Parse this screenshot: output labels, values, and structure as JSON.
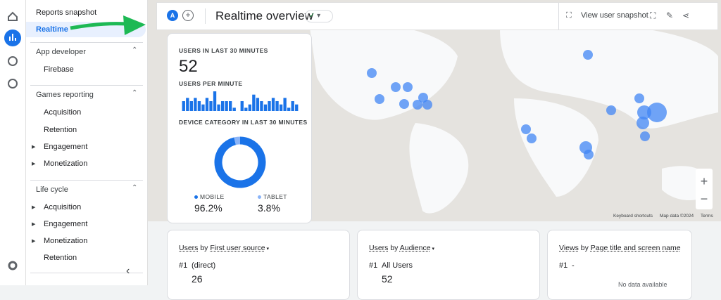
{
  "sidebar": {
    "items": [
      "Reports snapshot",
      "Realtime"
    ],
    "sections": [
      {
        "title": "App developer",
        "items": [
          "Firebase"
        ]
      },
      {
        "title": "Games reporting",
        "items": [
          "Acquisition",
          "Retention",
          "Engagement",
          "Monetization"
        ]
      },
      {
        "title": "Life cycle",
        "items": [
          "Acquisition",
          "Engagement",
          "Monetization",
          "Retention"
        ]
      }
    ]
  },
  "header": {
    "avatar": "A",
    "title": "Realtime overview",
    "snapshot_button": "View user snapshot"
  },
  "realtime_card": {
    "users_label": "USERS IN LAST 30 MINUTES",
    "users_value": "52",
    "per_minute_label": "USERS PER MINUTE",
    "per_minute_values": [
      3,
      4,
      3,
      4,
      3,
      2,
      4,
      3,
      6,
      2,
      3,
      3,
      3,
      1,
      0,
      3,
      1,
      2,
      5,
      4,
      3,
      2,
      3,
      4,
      3,
      2,
      4,
      1,
      3,
      2
    ],
    "device_label": "DEVICE CATEGORY IN LAST 30 MINUTES",
    "devices": [
      {
        "name": "MOBILE",
        "value": 96.2,
        "label": "96.2%",
        "color": "#1a73e8"
      },
      {
        "name": "TABLET",
        "value": 3.8,
        "label": "3.8%",
        "color": "#8ab4f8"
      }
    ]
  },
  "map_footer": [
    "Keyboard shortcuts",
    "Map data ©2024",
    "Terms"
  ],
  "cards": [
    {
      "title_parts": [
        "Users",
        " by ",
        "First user source"
      ],
      "rank": "#1",
      "top_item": "(direct)",
      "top_value": "26"
    },
    {
      "title_parts": [
        "Users",
        " by ",
        "Audience"
      ],
      "rank": "#1",
      "top_item": "All Users",
      "top_value": "52"
    },
    {
      "title_parts": [
        "Views",
        " by ",
        "Page title and screen name"
      ],
      "rank": "#1",
      "top_item": "-",
      "note": "No data available"
    }
  ]
}
